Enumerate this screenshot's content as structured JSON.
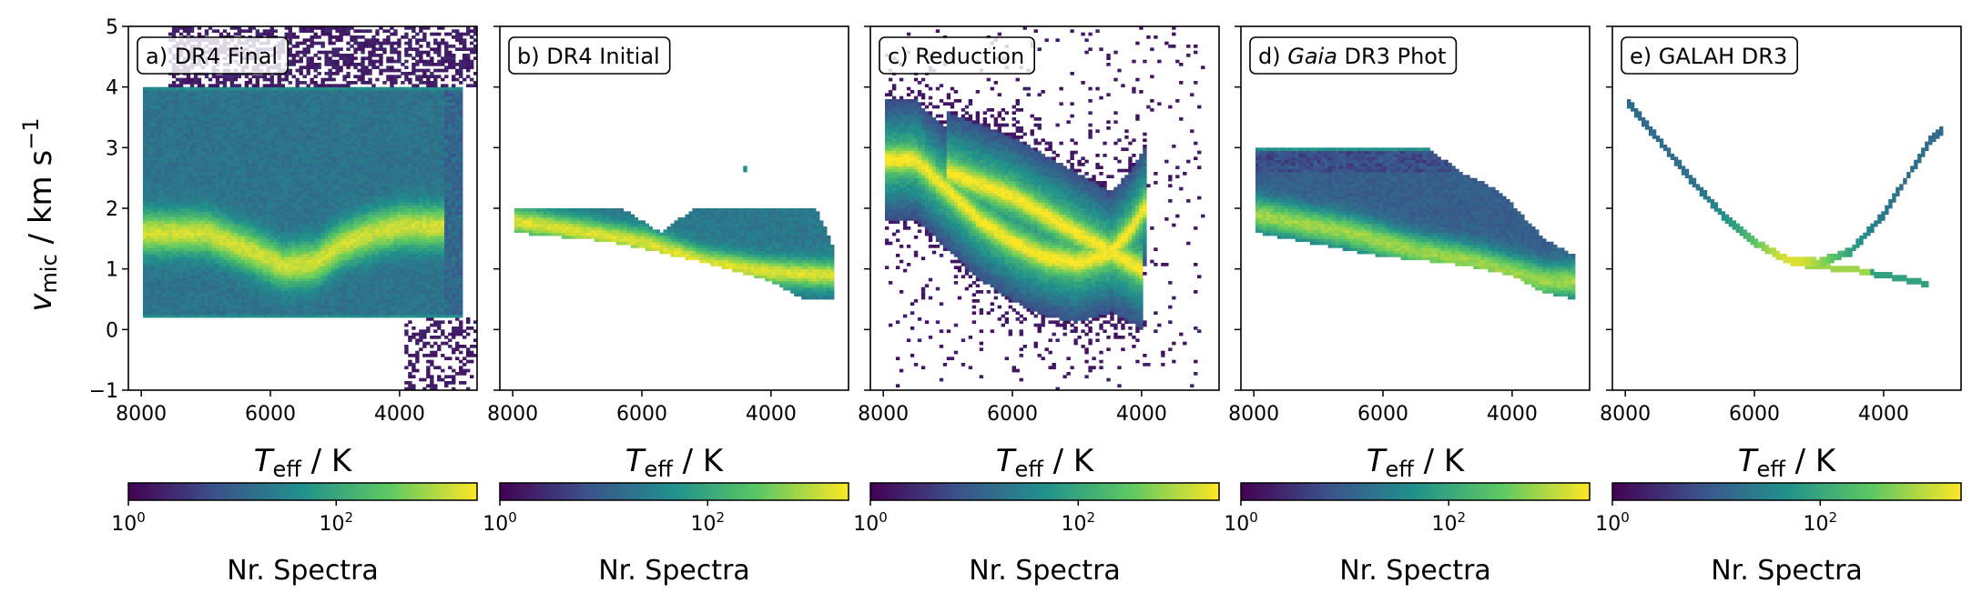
{
  "figure": {
    "ylabel": {
      "main": "v",
      "sub": "mic",
      "rest": " / km s",
      "sup": "−1"
    },
    "xlabel": {
      "main": "T",
      "sub": "eff",
      "rest": " / K"
    },
    "colorbar_label": "Nr. Spectra",
    "colorbar_ticks": [
      {
        "base": "10",
        "exp": "0"
      },
      {
        "base": "10",
        "exp": "2"
      }
    ],
    "colormap": [
      "#440154",
      "#3b528b",
      "#21918c",
      "#5ec962",
      "#fde725"
    ]
  },
  "chart_data": [
    {
      "type": "heatmap",
      "panel_label": "a) DR4 Final",
      "xlim": [
        8200,
        2800
      ],
      "ylim": [
        -1,
        5
      ],
      "x_ticks": [
        8000,
        6000,
        4000
      ],
      "y_ticks": [
        -1,
        0,
        1,
        2,
        3,
        4,
        5
      ],
      "x_range_covered": [
        8000,
        3000
      ],
      "features": {
        "dense_box": {
          "teff": [
            8000,
            3000
          ],
          "vmic": [
            0.2,
            4.0
          ]
        },
        "ridge": [
          [
            7000,
            1.6
          ],
          [
            6300,
            1.3
          ],
          [
            5800,
            1.05
          ],
          [
            5300,
            1.1
          ],
          [
            4900,
            1.4
          ],
          [
            4400,
            1.6
          ],
          [
            4000,
            1.7
          ]
        ],
        "flag_lines_vmic": [
          0.2,
          4.0
        ],
        "outliers_above_4": true
      }
    },
    {
      "type": "heatmap",
      "panel_label": "b) DR4 Initial",
      "xlim": [
        8200,
        2800
      ],
      "ylim": [
        -1,
        5
      ],
      "x_ticks": [
        8000,
        6000,
        4000
      ],
      "y_ticks": [
        -1,
        0,
        1,
        2,
        3,
        4,
        5
      ],
      "x_range_covered": [
        8000,
        3000
      ],
      "features": {
        "upper_envelope": [
          [
            8000,
            2.0
          ],
          [
            6300,
            2.0
          ],
          [
            5700,
            1.6
          ],
          [
            5200,
            2.0
          ],
          [
            3300,
            2.0
          ],
          [
            3000,
            1.3
          ]
        ],
        "lower_envelope": [
          [
            8000,
            1.6
          ],
          [
            6500,
            1.45
          ],
          [
            5000,
            1.1
          ],
          [
            4000,
            0.8
          ],
          [
            3500,
            0.5
          ],
          [
            3000,
            0.5
          ]
        ],
        "ridge": [
          [
            8000,
            1.8
          ],
          [
            6000,
            1.45
          ],
          [
            5000,
            1.1
          ],
          [
            4000,
            0.95
          ],
          [
            3000,
            0.9
          ]
        ],
        "outlier": [
          4400,
          2.65
        ]
      }
    },
    {
      "type": "heatmap",
      "panel_label": "c) Reduction",
      "xlim": [
        8200,
        2800
      ],
      "ylim": [
        -1,
        5
      ],
      "x_ticks": [
        8000,
        6000,
        4000
      ],
      "y_ticks": [
        -1,
        0,
        1,
        2,
        3,
        4,
        5
      ],
      "x_range_covered": [
        8000,
        3000
      ],
      "features": {
        "ridge_dwarfs": [
          [
            7500,
            2.8
          ],
          [
            7000,
            2.3
          ],
          [
            6500,
            1.8
          ],
          [
            6000,
            1.45
          ],
          [
            5500,
            1.2
          ],
          [
            5000,
            1.1
          ],
          [
            4500,
            1.25
          ],
          [
            4200,
            1.6
          ],
          [
            3900,
            2.1
          ]
        ],
        "ridge_giants": [
          [
            7000,
            2.6
          ],
          [
            6000,
            2.2
          ],
          [
            5000,
            1.6
          ],
          [
            4500,
            1.3
          ],
          [
            4000,
            1.0
          ]
        ],
        "scatter_range_vmic": [
          -1,
          5
        ]
      }
    },
    {
      "type": "heatmap",
      "panel_label_parts": [
        "d) ",
        "Gaia",
        " DR3 Phot"
      ],
      "xlim": [
        8200,
        2800
      ],
      "ylim": [
        -1,
        5
      ],
      "x_ticks": [
        8000,
        6000,
        4000
      ],
      "y_ticks": [
        -1,
        0,
        1,
        2,
        3,
        4,
        5
      ],
      "x_range_covered": [
        8000,
        3000
      ],
      "features": {
        "upper_envelope": [
          [
            8000,
            3.0
          ],
          [
            5300,
            3.0
          ],
          [
            4800,
            2.6
          ],
          [
            4200,
            2.3
          ],
          [
            3500,
            1.5
          ],
          [
            3000,
            1.2
          ]
        ],
        "lower_envelope": [
          [
            8000,
            1.6
          ],
          [
            6000,
            1.2
          ],
          [
            5000,
            1.1
          ],
          [
            4000,
            0.9
          ],
          [
            3500,
            0.6
          ],
          [
            3000,
            0.5
          ]
        ],
        "ridge": [
          [
            8000,
            1.9
          ],
          [
            6500,
            1.6
          ],
          [
            5500,
            1.3
          ],
          [
            4500,
            1.1
          ],
          [
            3500,
            0.8
          ],
          [
            3000,
            0.8
          ]
        ]
      }
    },
    {
      "type": "heatmap",
      "panel_label": "e) GALAH DR3",
      "xlim": [
        8200,
        2800
      ],
      "ylim": [
        -1,
        5
      ],
      "x_ticks": [
        8000,
        6000,
        4000
      ],
      "y_ticks": [
        -1,
        0,
        1,
        2,
        3,
        4,
        5
      ],
      "x_range_covered": [
        8000,
        3000
      ],
      "features": {
        "curve_dwarfs": [
          [
            8000,
            3.8
          ],
          [
            7500,
            3.15
          ],
          [
            7000,
            2.5
          ],
          [
            6500,
            1.9
          ],
          [
            6000,
            1.45
          ],
          [
            5500,
            1.15
          ],
          [
            5000,
            1.1
          ],
          [
            4500,
            1.3
          ],
          [
            4000,
            1.9
          ],
          [
            3700,
            2.4
          ],
          [
            3300,
            3.1
          ],
          [
            3100,
            3.3
          ]
        ],
        "curve_giants": [
          [
            5200,
            1.05
          ],
          [
            4500,
            1.0
          ],
          [
            4000,
            0.9
          ],
          [
            3500,
            0.8
          ],
          [
            3300,
            0.75
          ]
        ]
      }
    }
  ]
}
